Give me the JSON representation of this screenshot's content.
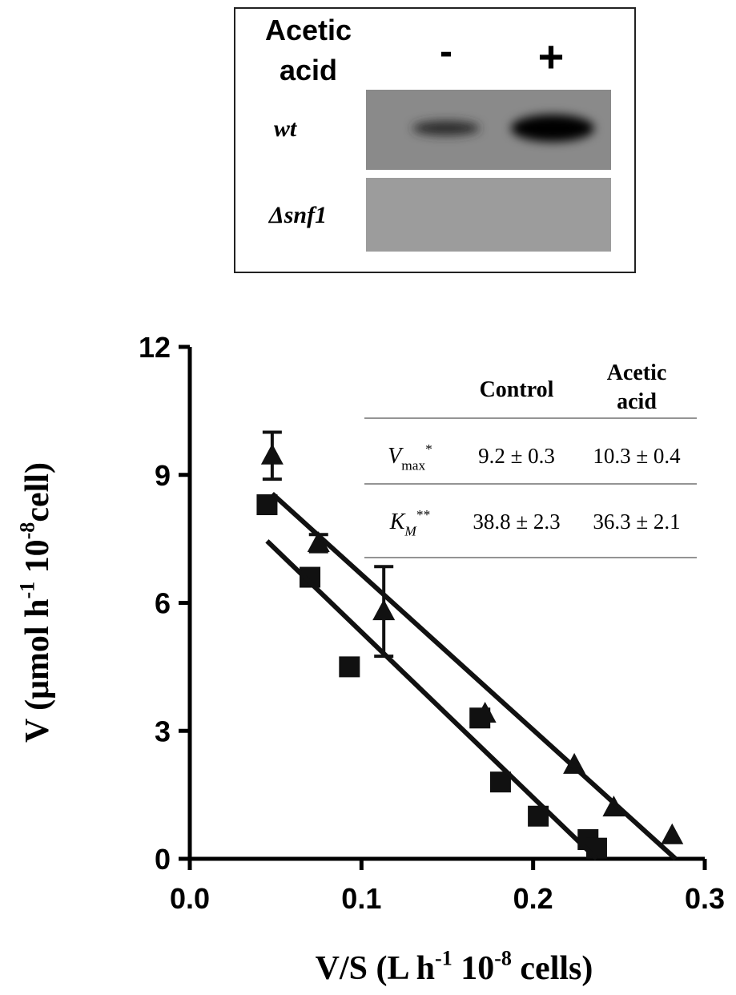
{
  "blot": {
    "header": [
      "Acetic",
      "acid"
    ],
    "conditions": [
      "-",
      "+"
    ],
    "rows": [
      "wt",
      "Δsnf1"
    ]
  },
  "chart_data": {
    "type": "scatter",
    "x_label": [
      {
        "text": "V/S (L h"
      },
      {
        "text": "-1",
        "sup": true
      },
      {
        "text": " 10"
      },
      {
        "text": "-8",
        "sup": true
      },
      {
        "text": " cells)"
      }
    ],
    "y_label": [
      {
        "text": "V (μmol h"
      },
      {
        "text": "-1",
        "sup": true
      },
      {
        "text": " 10"
      },
      {
        "text": "-8",
        "sup": true
      },
      {
        "text": "cell)"
      }
    ],
    "xlim": [
      0,
      0.3
    ],
    "ylim": [
      0,
      12
    ],
    "xticks": [
      {
        "value": 0,
        "label": "0.0"
      },
      0.1,
      0.2,
      0.3
    ],
    "yticks": [
      0,
      3,
      6,
      9,
      12
    ],
    "series": [
      {
        "marker": "square",
        "color": "#111111",
        "x": [
          0.045,
          0.07,
          0.093,
          0.169,
          0.181,
          0.203,
          0.232,
          0.237
        ],
        "values": [
          8.3,
          6.6,
          4.5,
          3.3,
          1.8,
          1.0,
          0.45,
          0.25
        ]
      },
      {
        "marker": "triangle",
        "color": "#111111",
        "x": [
          0.048,
          0.075,
          0.113,
          0.172,
          0.224,
          0.247,
          0.281
        ],
        "values": [
          9.45,
          7.4,
          5.8,
          3.4,
          2.2,
          1.2,
          0.55
        ],
        "errors": [
          0.55,
          0.2,
          1.05,
          null,
          null,
          null,
          null
        ]
      },
      {
        "marker": "line",
        "color": "#111111",
        "x": [
          0.045,
          0.237
        ],
        "values": [
          7.45,
          0
        ]
      },
      {
        "marker": "line",
        "color": "#111111",
        "x": [
          0.048,
          0.283
        ],
        "values": [
          8.56,
          0
        ]
      }
    ],
    "table": {
      "columns": [
        [
          "Control"
        ],
        [
          "Acetic",
          "acid"
        ]
      ],
      "rows": [
        {
          "label": [
            {
              "text": "V",
              "italic": true
            },
            {
              "text": "max",
              "sub": true
            },
            {
              "text": "*",
              "sup": true
            }
          ],
          "cells": [
            "9.2 ± 0.3",
            "10.3 ± 0.4"
          ]
        },
        {
          "label": [
            {
              "text": "K",
              "italic": true
            },
            {
              "text": "M",
              "sub": true,
              "italic": true
            },
            {
              "text": "**",
              "sup": true
            }
          ],
          "cells": [
            "38.8 ± 2.3",
            "36.3 ± 2.1"
          ]
        }
      ]
    }
  }
}
